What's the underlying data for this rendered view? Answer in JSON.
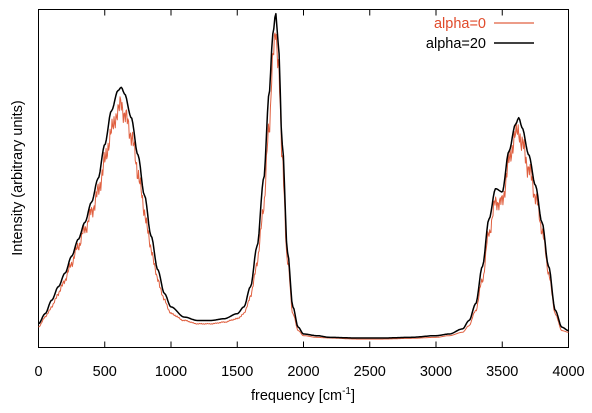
{
  "chart_data": {
    "type": "line",
    "title": "",
    "xlabel": "frequency [cm",
    "xlabel_sup": "-1",
    "xlabel_suffix": "]",
    "ylabel": "Intensity (arbitrary units)",
    "xlim": [
      0,
      4000
    ],
    "ylim": [
      0,
      1.0
    ],
    "xticks": [
      0,
      500,
      1000,
      1500,
      2000,
      2500,
      3000,
      3500,
      4000
    ],
    "xtick_labels": [
      "0",
      "500",
      "1000",
      "1500",
      "2000",
      "2500",
      "3000",
      "3500",
      "4000"
    ],
    "yticks_labeled": false,
    "grid": false,
    "legend_position": "top-right",
    "series": [
      {
        "name": "alpha=0",
        "color": "#e06040",
        "noisy": true,
        "x": [
          0,
          50,
          100,
          150,
          200,
          250,
          300,
          350,
          400,
          450,
          500,
          550,
          600,
          625,
          650,
          700,
          750,
          800,
          850,
          900,
          950,
          1000,
          1100,
          1200,
          1300,
          1400,
          1500,
          1550,
          1600,
          1650,
          1700,
          1740,
          1770,
          1790,
          1810,
          1840,
          1880,
          1920,
          1960,
          2000,
          2100,
          2200,
          2400,
          2600,
          2800,
          3000,
          3100,
          3200,
          3250,
          3300,
          3350,
          3400,
          3450,
          3500,
          3550,
          3600,
          3625,
          3650,
          3700,
          3750,
          3800,
          3850,
          3900,
          3950,
          4000
        ],
        "y": [
          0.06,
          0.09,
          0.12,
          0.16,
          0.2,
          0.25,
          0.3,
          0.35,
          0.4,
          0.46,
          0.55,
          0.64,
          0.7,
          0.72,
          0.69,
          0.63,
          0.52,
          0.4,
          0.29,
          0.2,
          0.14,
          0.1,
          0.08,
          0.07,
          0.07,
          0.075,
          0.085,
          0.1,
          0.15,
          0.25,
          0.42,
          0.65,
          0.86,
          0.93,
          0.85,
          0.55,
          0.25,
          0.1,
          0.05,
          0.035,
          0.03,
          0.028,
          0.025,
          0.025,
          0.027,
          0.03,
          0.035,
          0.045,
          0.065,
          0.11,
          0.2,
          0.34,
          0.43,
          0.43,
          0.55,
          0.63,
          0.64,
          0.6,
          0.53,
          0.45,
          0.35,
          0.22,
          0.1,
          0.05,
          0.045
        ]
      },
      {
        "name": "alpha=20",
        "color": "#000000",
        "noisy": false,
        "x": [
          0,
          50,
          100,
          150,
          200,
          250,
          300,
          350,
          400,
          450,
          500,
          550,
          600,
          625,
          650,
          700,
          750,
          800,
          850,
          900,
          950,
          1000,
          1100,
          1200,
          1300,
          1400,
          1500,
          1550,
          1600,
          1650,
          1700,
          1740,
          1770,
          1790,
          1810,
          1840,
          1880,
          1920,
          1960,
          2000,
          2100,
          2200,
          2400,
          2600,
          2800,
          3000,
          3100,
          3200,
          3250,
          3300,
          3350,
          3400,
          3450,
          3500,
          3550,
          3600,
          3625,
          3650,
          3700,
          3750,
          3800,
          3850,
          3900,
          3950,
          4000
        ],
        "y": [
          0.07,
          0.1,
          0.14,
          0.18,
          0.22,
          0.27,
          0.32,
          0.37,
          0.43,
          0.5,
          0.6,
          0.7,
          0.76,
          0.77,
          0.75,
          0.68,
          0.57,
          0.45,
          0.33,
          0.23,
          0.16,
          0.12,
          0.09,
          0.08,
          0.08,
          0.085,
          0.1,
          0.12,
          0.18,
          0.3,
          0.5,
          0.75,
          0.93,
          0.99,
          0.9,
          0.6,
          0.28,
          0.12,
          0.06,
          0.04,
          0.035,
          0.03,
          0.028,
          0.028,
          0.03,
          0.035,
          0.04,
          0.055,
          0.08,
          0.13,
          0.24,
          0.38,
          0.47,
          0.46,
          0.58,
          0.66,
          0.68,
          0.65,
          0.57,
          0.48,
          0.37,
          0.24,
          0.11,
          0.06,
          0.05
        ]
      }
    ]
  }
}
